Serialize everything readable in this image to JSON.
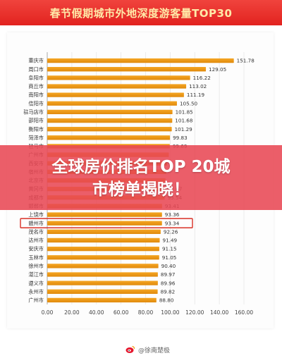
{
  "header": {
    "title": "春节假期城市外地深度游客量TOP30"
  },
  "banner": {
    "line1": "全球房价排名TOP 20城",
    "line2": "市榜单揭晓！"
  },
  "watermark": {
    "text": "@徐南楚极"
  },
  "colors": {
    "bar": "#f5a623",
    "bar_dark": "#e08a0c",
    "header": "#e2231f",
    "highlight_box": "#d93025",
    "banner": "#e84854"
  },
  "chart_data": {
    "type": "bar",
    "orientation": "horizontal",
    "title": "",
    "xlabel": "",
    "ylabel": "",
    "xlim": [
      0,
      160
    ],
    "xticks": [
      "0.00",
      "20.00",
      "40.00",
      "60.00",
      "80.00",
      "100.00",
      "120.00",
      "140.00",
      "160.00"
    ],
    "grid": true,
    "legend": "none",
    "highlighted_category": "赣州市",
    "categories": [
      "重庆市",
      "周口市",
      "阜阳市",
      "商丘市",
      "南阳市",
      "信阳市",
      "驻马店市",
      "邵阳市",
      "衡阳市",
      "菏泽市",
      "驻马市",
      "广州市",
      "西安市",
      "宿州市",
      "北京市",
      "黄冈市",
      "成都市",
      "邯郸市",
      "上饶市",
      "赣州市",
      "茂名市",
      "达州市",
      "安庆市",
      "玉林市",
      "徐州市",
      "湛江市",
      "遵义市",
      "永州市",
      "广州市"
    ],
    "values": [
      151.78,
      129.05,
      116.22,
      113.02,
      111.19,
      105.5,
      101.85,
      101.68,
      101.29,
      99.83,
      99.69,
      98.9,
      97.5,
      96.8,
      96.2,
      95.67,
      95.54,
      93.41,
      93.36,
      93.34,
      92.26,
      91.49,
      91.15,
      91.05,
      90.4,
      89.97,
      89.96,
      89.82,
      88.8
    ],
    "data_labels": [
      "151.78",
      "129.05",
      "116.22",
      "113.02",
      "111.19",
      "105.50",
      "101.85",
      "101.68",
      "101.29",
      "99.83",
      "99.69",
      "",
      "",
      "",
      "",
      "95.67",
      "95.54",
      "93.41",
      "93.36",
      "93.34",
      "92.26",
      "91.49",
      "91.15",
      "91.05",
      "90.40",
      "89.97",
      "89.96",
      "89.82",
      "88.80"
    ]
  }
}
